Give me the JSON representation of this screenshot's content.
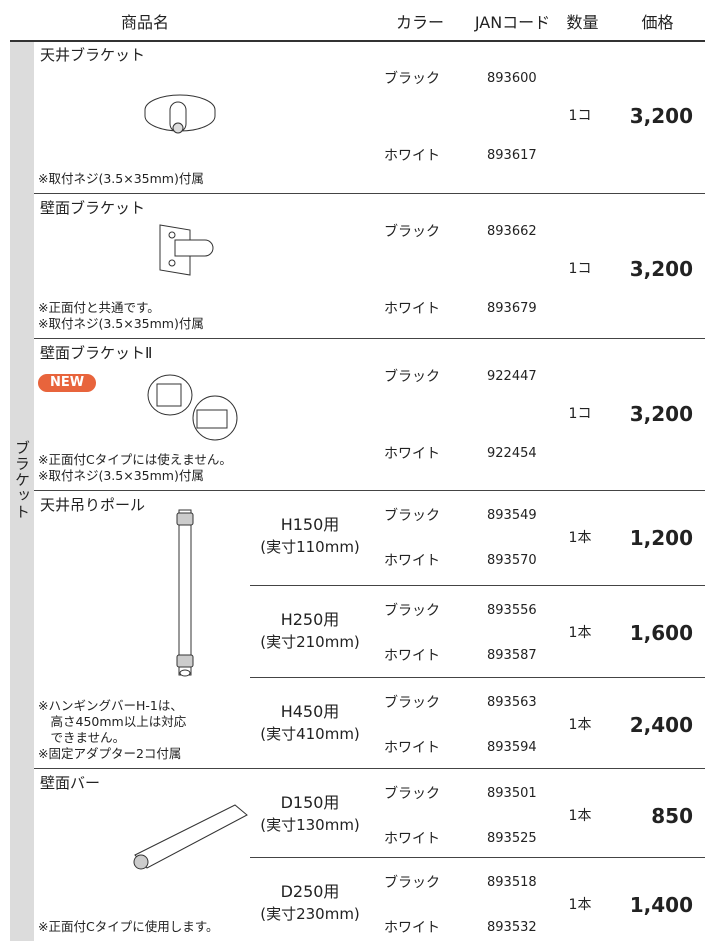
{
  "header": {
    "columns": [
      "商品名",
      "カラー",
      "JANコード",
      "数量",
      "価格"
    ]
  },
  "category_label": "ブラケット",
  "products": [
    {
      "name": "天井ブラケット",
      "notes": [
        "※取付ネジ(3.5×35mm)付属"
      ],
      "variants": [
        {
          "colors": [
            {
              "color": "ブラック",
              "jan": "893600"
            },
            {
              "color": "ホワイト",
              "jan": "893617"
            }
          ],
          "quantity": "1コ",
          "price": "3,200"
        }
      ]
    },
    {
      "name": "壁面ブラケット",
      "notes": [
        "※正面付と共通です。",
        "※取付ネジ(3.5×35mm)付属"
      ],
      "variants": [
        {
          "colors": [
            {
              "color": "ブラック",
              "jan": "893662"
            },
            {
              "color": "ホワイト",
              "jan": "893679"
            }
          ],
          "quantity": "1コ",
          "price": "3,200"
        }
      ]
    },
    {
      "name": "壁面ブラケットⅡ",
      "badge": "NEW",
      "notes": [
        "※正面付Cタイプには使えません。",
        "※取付ネジ(3.5×35mm)付属"
      ],
      "variants": [
        {
          "colors": [
            {
              "color": "ブラック",
              "jan": "922447"
            },
            {
              "color": "ホワイト",
              "jan": "922454"
            }
          ],
          "quantity": "1コ",
          "price": "3,200"
        }
      ]
    },
    {
      "name": "天井吊りポール",
      "notes": [
        "※ハンギングバーH-1は、",
        "　高さ450mm以上は対応",
        "　できません。",
        "※固定アダプター2コ付属"
      ],
      "variants": [
        {
          "size": "H150用",
          "size_actual": "(実寸110mm)",
          "colors": [
            {
              "color": "ブラック",
              "jan": "893549"
            },
            {
              "color": "ホワイト",
              "jan": "893570"
            }
          ],
          "quantity": "1本",
          "price": "1,200"
        },
        {
          "size": "H250用",
          "size_actual": "(実寸210mm)",
          "colors": [
            {
              "color": "ブラック",
              "jan": "893556"
            },
            {
              "color": "ホワイト",
              "jan": "893587"
            }
          ],
          "quantity": "1本",
          "price": "1,600"
        },
        {
          "size": "H450用",
          "size_actual": "(実寸410mm)",
          "colors": [
            {
              "color": "ブラック",
              "jan": "893563"
            },
            {
              "color": "ホワイト",
              "jan": "893594"
            }
          ],
          "quantity": "1本",
          "price": "2,400"
        }
      ]
    },
    {
      "name": "壁面バー",
      "notes": [
        "※正面付Cタイプに使用します。"
      ],
      "variants": [
        {
          "size": "D150用",
          "size_actual": "(実寸130mm)",
          "colors": [
            {
              "color": "ブラック",
              "jan": "893501"
            },
            {
              "color": "ホワイト",
              "jan": "893525"
            }
          ],
          "quantity": "1本",
          "price": "850"
        },
        {
          "size": "D250用",
          "size_actual": "(実寸230mm)",
          "colors": [
            {
              "color": "ブラック",
              "jan": "893518"
            },
            {
              "color": "ホワイト",
              "jan": "893532"
            }
          ],
          "quantity": "1本",
          "price": "1,400"
        }
      ]
    }
  ]
}
